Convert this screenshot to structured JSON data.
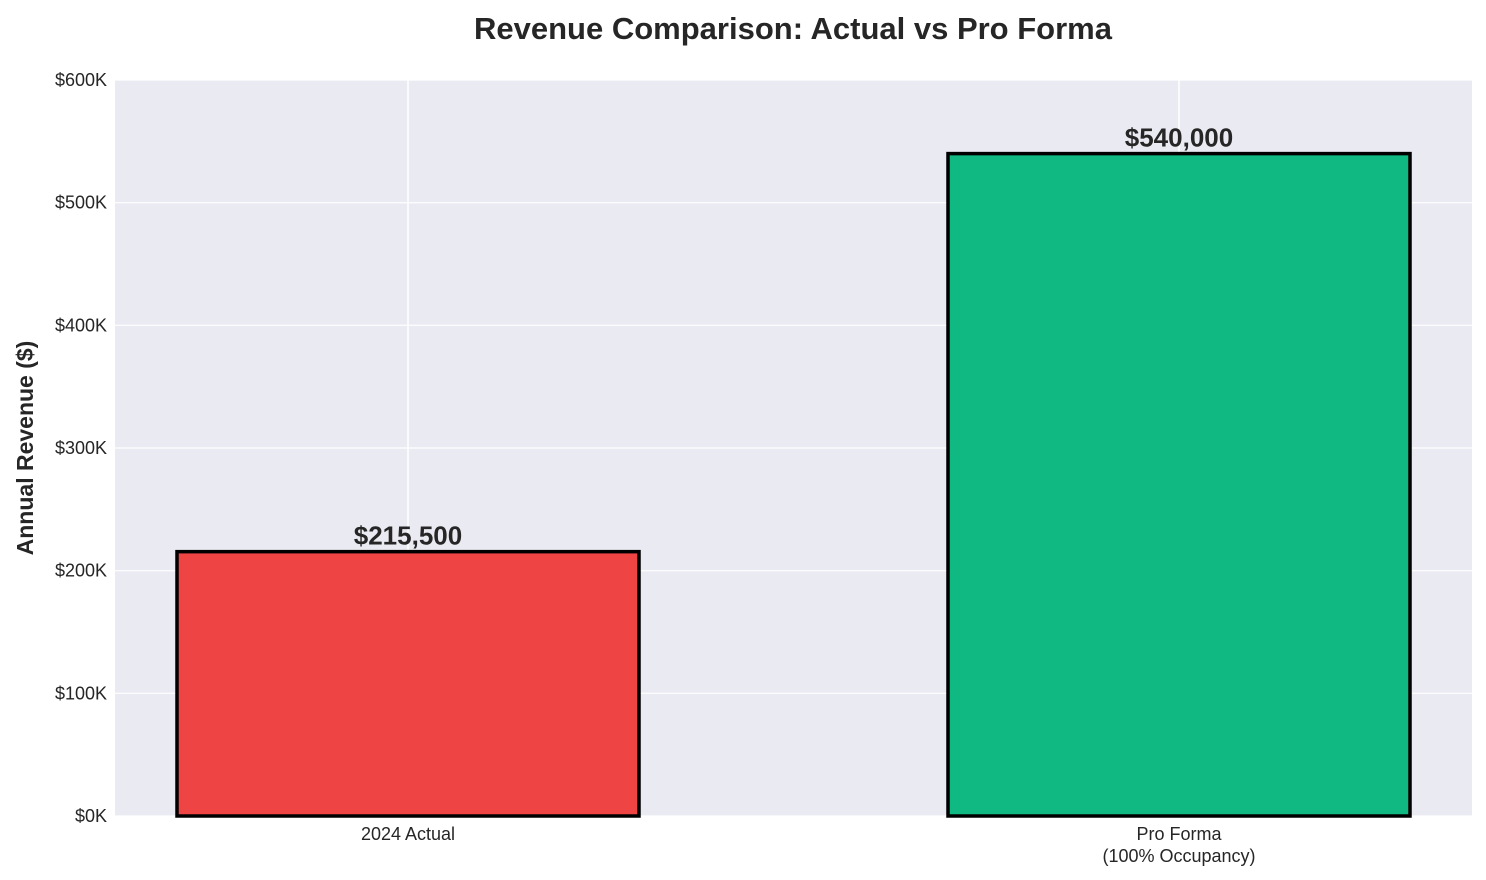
{
  "chart_data": {
    "type": "bar",
    "title": "Revenue Comparison: Actual vs Pro Forma",
    "xlabel": "",
    "ylabel": "Annual Revenue ($)",
    "categories": [
      "2024 Actual",
      "Pro Forma\n(100% Occupancy)"
    ],
    "values": [
      215500,
      540000
    ],
    "data_labels": [
      "$215,500",
      "$540,000"
    ],
    "colors": [
      "#ef4444",
      "#10b981"
    ],
    "edge_color": "#000000",
    "ylim": [
      0,
      600000
    ],
    "yticks": [
      0,
      100000,
      200000,
      300000,
      400000,
      500000,
      600000
    ],
    "ytick_labels": [
      "$0K",
      "$100K",
      "$200K",
      "$300K",
      "$400K",
      "$500K",
      "$600K"
    ],
    "grid": true,
    "background": "#eaeaf2"
  }
}
